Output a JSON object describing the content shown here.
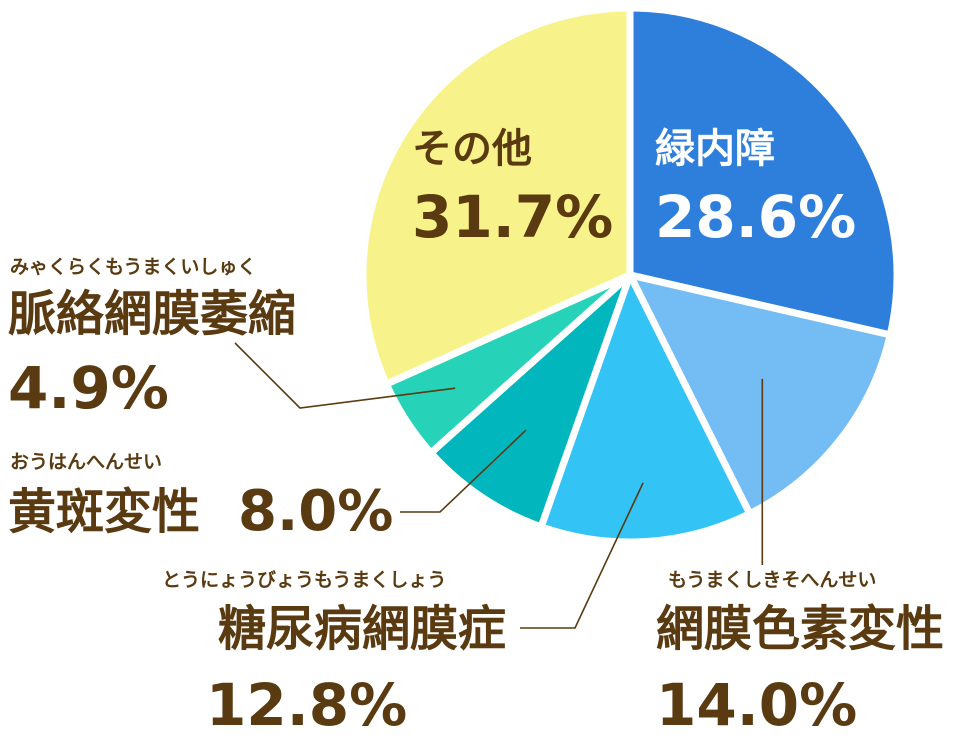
{
  "chart_data": {
    "type": "pie",
    "slices": [
      {
        "name": "緑内障",
        "value": 28.6,
        "pct": "28.6%",
        "ruby": "",
        "color": "#2e7fdc"
      },
      {
        "name": "網膜色素変性",
        "value": 14.0,
        "pct": "14.0%",
        "ruby": "もうまくしきそへんせい",
        "color": "#74bdf4"
      },
      {
        "name": "糖尿病網膜症",
        "value": 12.8,
        "pct": "12.8%",
        "ruby": "とうにょうびょうもうまくしょう",
        "color": "#33c3f5"
      },
      {
        "name": "黄斑変性",
        "value": 8.0,
        "pct": "8.0%",
        "ruby": "おうはんへんせい",
        "color": "#02b6be"
      },
      {
        "name": "脈絡網膜萎縮",
        "value": 4.9,
        "pct": "4.9%",
        "ruby": "みゃくらくもうまくいしゅく",
        "color": "#27d3b8"
      },
      {
        "name": "その他",
        "value": 31.7,
        "pct": "31.7%",
        "ruby": "",
        "color": "#f7f38a"
      }
    ],
    "label_color": "#5a3a10",
    "inner_label_white": "#ffffff"
  }
}
